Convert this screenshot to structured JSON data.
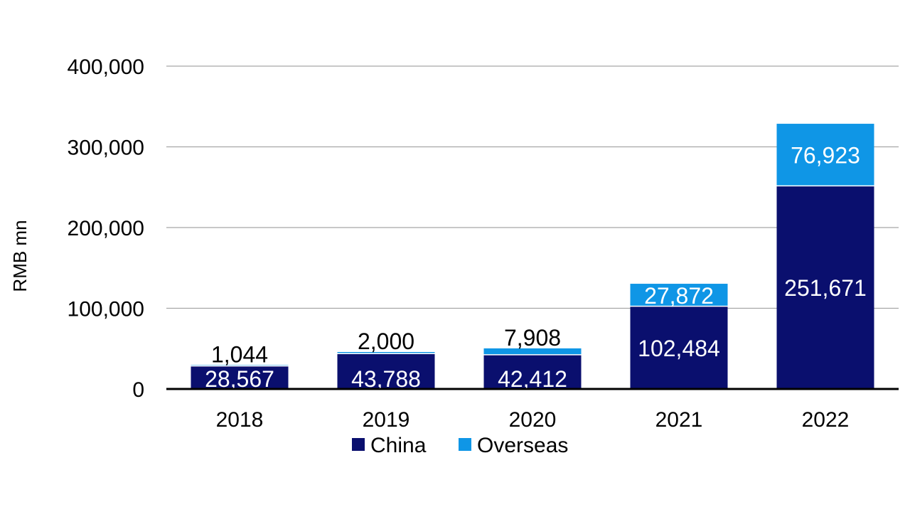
{
  "chart_data": {
    "type": "bar",
    "stacked": true,
    "categories": [
      "2018",
      "2019",
      "2020",
      "2021",
      "2022"
    ],
    "series": [
      {
        "name": "China",
        "values": [
          28567,
          43788,
          42412,
          102484,
          251671
        ],
        "labels": [
          "28,567",
          "43,788",
          "42,412",
          "102,484",
          "251,671"
        ],
        "color": "#0a0f6e",
        "label_color": "#ffffff"
      },
      {
        "name": "Overseas",
        "values": [
          1044,
          2000,
          7908,
          27872,
          76923
        ],
        "labels": [
          "1,044",
          "2,000",
          "7,908",
          "27,872",
          "76,923"
        ],
        "color": "#0f96e6"
      }
    ],
    "ylabel": "RMB mn",
    "xlabel": "",
    "title": "",
    "ylim": [
      0,
      400000
    ],
    "yticks": [
      0,
      100000,
      200000,
      300000,
      400000
    ],
    "ytick_labels": [
      "0",
      "100,000",
      "200,000",
      "300,000",
      "400,000"
    ],
    "grid": true,
    "legend_position": "bottom",
    "gridline_color": "#a6a6a6",
    "axis_color": "#000000"
  }
}
